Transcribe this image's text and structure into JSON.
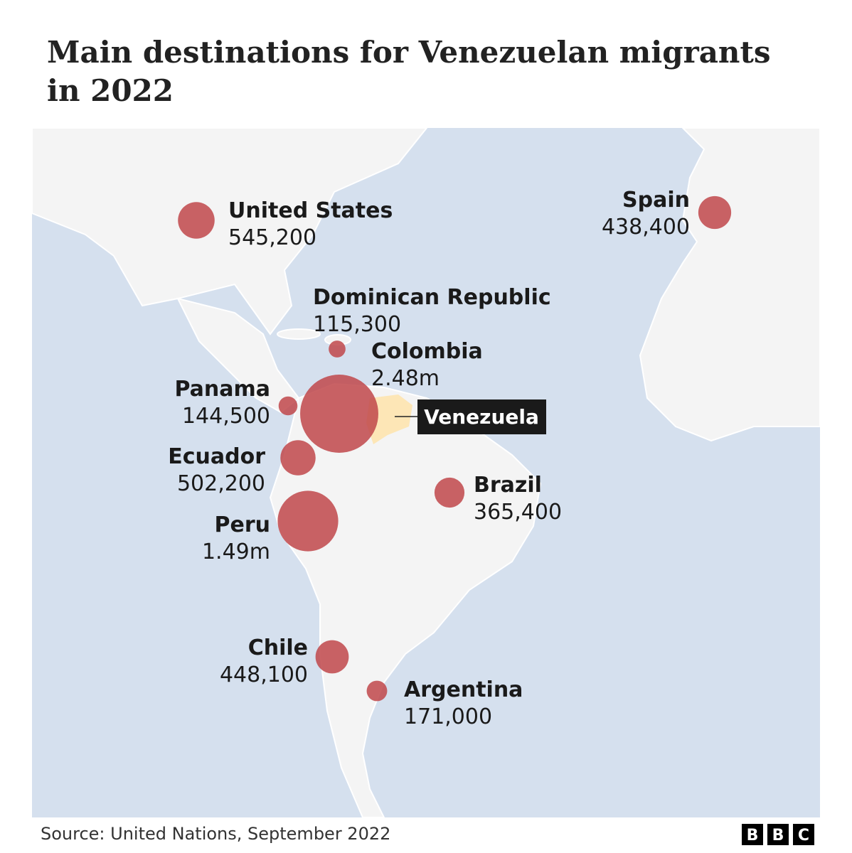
{
  "title": [
    "Main destinations for Venezuelan migrants",
    "in 2022"
  ],
  "destinations": [
    {
      "name": "United States",
      "value": 545200,
      "value_label": "545,200"
    },
    {
      "name": "Spain",
      "value": 438400,
      "value_label": "438,400"
    },
    {
      "name": "Dominican Republic",
      "value": 115300,
      "value_label": "115,300"
    },
    {
      "name": "Colombia",
      "value": 2480000,
      "value_label": "2.48m"
    },
    {
      "name": "Panama",
      "value": 144500,
      "value_label": "144,500"
    },
    {
      "name": "Ecuador",
      "value": 502200,
      "value_label": "502,200"
    },
    {
      "name": "Peru",
      "value": 1490000,
      "value_label": "1.49m"
    },
    {
      "name": "Brazil",
      "value": 365400,
      "value_label": "365,400"
    },
    {
      "name": "Chile",
      "value": 448100,
      "value_label": "448,100"
    },
    {
      "name": "Argentina",
      "value": 171000,
      "value_label": "171,000"
    }
  ],
  "origin_label": "Venezuela",
  "source": "Source: United Nations, September 2022",
  "logo": [
    "B",
    "B",
    "C"
  ]
}
